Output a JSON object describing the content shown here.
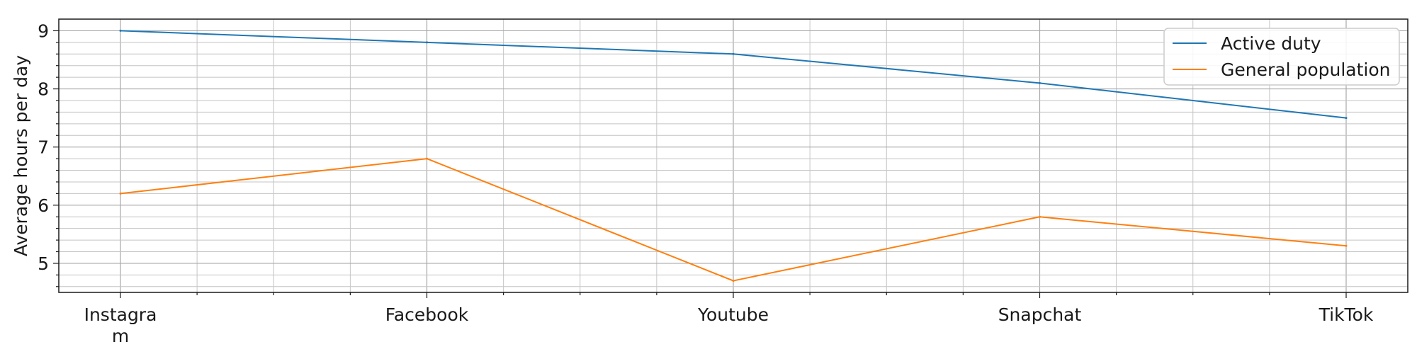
{
  "chart_data": {
    "type": "line",
    "title": "",
    "xlabel": "",
    "ylabel": "Average hours per day",
    "categories": [
      "Instagram",
      "Facebook",
      "Youtube",
      "Snapchat",
      "TikTok"
    ],
    "category_tick_lines": [
      [
        "Instagra",
        "m"
      ],
      [
        "Facebook"
      ],
      [
        "Youtube"
      ],
      [
        "Snapchat"
      ],
      [
        "TikTok"
      ]
    ],
    "y_ticks": [
      "5",
      "6",
      "7",
      "8",
      "9"
    ],
    "ylim": [
      4.5,
      9.2
    ],
    "grid": true,
    "minor_grid": true,
    "legend_position": "top-right",
    "series": [
      {
        "name": "Active duty",
        "color": "#1f77b4",
        "values": [
          9.0,
          8.8,
          8.6,
          8.1,
          7.5
        ]
      },
      {
        "name": "General population",
        "color": "#ff7f0e",
        "values": [
          6.2,
          6.8,
          4.7,
          5.8,
          5.3
        ]
      }
    ]
  }
}
